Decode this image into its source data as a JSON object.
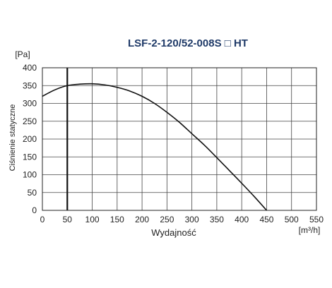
{
  "chart_data": {
    "type": "line",
    "title": "LSF-2-120/52-008S □ HT",
    "xlabel": "Wydajność",
    "x_unit": "[m³/h]",
    "ylabel": "Ciśnienie statyczne",
    "y_unit": "[Pa]",
    "xlim": [
      0,
      550
    ],
    "ylim": [
      0,
      400
    ],
    "x_ticks": [
      0,
      50,
      100,
      150,
      200,
      250,
      300,
      350,
      400,
      450,
      500,
      550
    ],
    "y_ticks": [
      0,
      50,
      100,
      150,
      200,
      250,
      300,
      350,
      400
    ],
    "grid": true,
    "series": [
      {
        "color": "#111111",
        "x": [
          0,
          25,
          50,
          75,
          100,
          125,
          150,
          175,
          200,
          225,
          250,
          275,
          300,
          325,
          350,
          375,
          400,
          425,
          450
        ],
        "y": [
          320,
          338,
          350,
          354,
          355,
          352,
          345,
          335,
          320,
          300,
          275,
          247,
          215,
          183,
          148,
          112,
          76,
          39,
          0
        ]
      }
    ],
    "vertical_marker_x": 50
  }
}
